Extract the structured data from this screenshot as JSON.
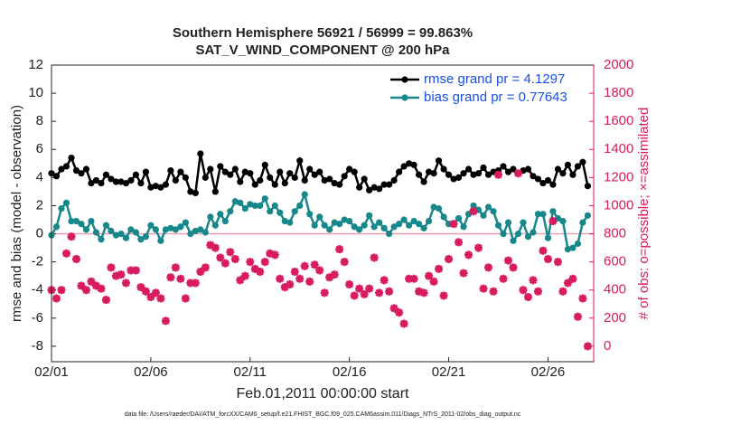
{
  "chart_data": {
    "type": "line",
    "title": "Southern Hemisphere 56921 / 56999 = 99.863%",
    "subtitle": "SAT_V_WIND_COMPONENT @ 200 hPa",
    "xlabel": "Feb.01,2011 00:00:00 start",
    "ylabel": "rmse and bias (model - observation)",
    "y2label": "# of obs: o=possible; ×=assimilated",
    "footnote": "data file: /Users/raeder/DAI/ATM_forcXX/CAM6_setup/f.e21.FHIST_BGC.f09_025.CAM6assim.011/Diags_NTrS_2011-02/obs_diag_output.nc",
    "legend": "northeast",
    "xlim": [
      0,
      27.3
    ],
    "xticks": [
      {
        "value": 0,
        "label": "02/01"
      },
      {
        "value": 5,
        "label": "02/06"
      },
      {
        "value": 10,
        "label": "02/11"
      },
      {
        "value": 15,
        "label": "02/16"
      },
      {
        "value": 20,
        "label": "02/21"
      },
      {
        "value": 25,
        "label": "02/26"
      }
    ],
    "ylim": [
      -9.1,
      12
    ],
    "yticks": [
      -8,
      -6,
      -4,
      -2,
      0,
      2,
      4,
      6,
      8,
      10,
      12
    ],
    "y2lim": [
      -110,
      2000
    ],
    "y2ticks": [
      0,
      200,
      400,
      600,
      800,
      1000,
      1200,
      1400,
      1600,
      1800,
      2000
    ],
    "x": [
      0,
      0.25,
      0.5,
      0.75,
      1,
      1.25,
      1.5,
      1.75,
      2,
      2.25,
      2.5,
      2.75,
      3,
      3.25,
      3.5,
      3.75,
      4,
      4.25,
      4.5,
      4.75,
      5,
      5.25,
      5.5,
      5.75,
      6,
      6.25,
      6.5,
      6.75,
      7,
      7.25,
      7.5,
      7.75,
      8,
      8.25,
      8.5,
      8.75,
      9,
      9.25,
      9.5,
      9.75,
      10,
      10.25,
      10.5,
      10.75,
      11,
      11.25,
      11.5,
      11.75,
      12,
      12.25,
      12.5,
      12.75,
      13,
      13.25,
      13.5,
      13.75,
      14,
      14.25,
      14.5,
      14.75,
      15,
      15.25,
      15.5,
      15.75,
      16,
      16.25,
      16.5,
      16.75,
      17,
      17.25,
      17.5,
      17.75,
      18,
      18.25,
      18.5,
      18.75,
      19,
      19.25,
      19.5,
      19.75,
      20,
      20.25,
      20.5,
      20.75,
      21,
      21.25,
      21.5,
      21.75,
      22,
      22.25,
      22.5,
      22.75,
      23,
      23.25,
      23.5,
      23.75,
      24,
      24.25,
      24.5,
      24.75,
      25,
      25.25,
      25.5,
      25.75,
      26,
      26.25,
      26.5,
      26.75,
      27
    ],
    "series": [
      {
        "name": "rmse grand pr = 4.1297",
        "color": "#000000",
        "values": [
          4.3,
          4.1,
          4.6,
          4.8,
          5.4,
          4.5,
          4.3,
          4.6,
          3.6,
          3.8,
          3.6,
          4.2,
          3.9,
          3.7,
          3.7,
          3.6,
          3.8,
          4.2,
          3.6,
          4.4,
          3.3,
          3.4,
          3.3,
          3.5,
          4.5,
          3.8,
          4.4,
          4.0,
          3.0,
          2.9,
          5.7,
          4.0,
          4.6,
          3.0,
          4.8,
          4.4,
          4.2,
          4.6,
          3.7,
          4.4,
          4.3,
          3.5,
          3.8,
          4.9,
          4.0,
          3.5,
          4.4,
          3.6,
          4.3,
          4.0,
          5.2,
          3.8,
          4.6,
          4.2,
          4.4,
          3.8,
          3.9,
          3.6,
          3.5,
          4.1,
          4.6,
          4.4,
          3.3,
          3.9,
          3.1,
          3.3,
          3.2,
          3.5,
          3.5,
          3.8,
          4.4,
          4.8,
          5.0,
          4.9,
          4.2,
          3.7,
          4.4,
          4.3,
          5.2,
          4.6,
          4.2,
          3.9,
          4.0,
          4.3,
          4.6,
          4.2,
          4.3,
          4.7,
          4.2,
          4.4,
          4.5,
          4.8,
          4.4,
          4.6,
          4.3,
          4.5,
          4.6,
          4.1,
          3.9,
          3.6,
          3.8,
          3.5,
          4.6,
          4.3,
          4.9,
          4.2,
          4.8,
          5.1,
          3.4
        ]
      },
      {
        "name": "bias grand pr = 0.77643",
        "color": "#16878a",
        "values": [
          -0.1,
          0.5,
          1.8,
          2.2,
          0.9,
          0.9,
          0.7,
          0.3,
          0.9,
          0.1,
          -0.4,
          0.6,
          0.2,
          -0.1,
          0.0,
          -0.3,
          0.3,
          0.1,
          -0.4,
          -0.2,
          0.6,
          0.3,
          -0.5,
          0.3,
          0.4,
          0.3,
          0.5,
          0.8,
          0.0,
          0.2,
          0.3,
          0.1,
          1.2,
          0.6,
          1.4,
          0.9,
          1.6,
          2.3,
          2.2,
          1.8,
          2.1,
          2.0,
          2.0,
          2.5,
          1.6,
          2.0,
          1.5,
          0.9,
          0.8,
          1.6,
          2.0,
          2.8,
          1.4,
          0.6,
          1.2,
          0.6,
          0.3,
          0.8,
          0.7,
          1.0,
          0.9,
          0.5,
          0.3,
          0.6,
          1.3,
          0.5,
          0.8,
          0.4,
          0.0,
          0.5,
          0.7,
          1.0,
          0.6,
          0.9,
          0.7,
          0.4,
          0.9,
          1.9,
          1.8,
          1.2,
          0.7,
          0.7,
          1.1,
          0.5,
          1.4,
          2.0,
          1.7,
          1.3,
          1.9,
          1.6,
          0.6,
          0.0,
          0.8,
          -0.5,
          0.0,
          0.8,
          -0.2,
          0.1,
          1.4,
          1.4,
          -0.3,
          1.6,
          1.1,
          0.9,
          -1.1,
          -1.0,
          -0.7,
          0.8,
          1.3
        ]
      },
      {
        "type": "scatter",
        "axis": "y2",
        "color": "#d81b60",
        "values": [
          400,
          340,
          400,
          660,
          780,
          620,
          430,
          400,
          460,
          430,
          410,
          330,
          560,
          500,
          510,
          450,
          540,
          540,
          420,
          390,
          350,
          380,
          340,
          180,
          490,
          560,
          480,
          340,
          450,
          450,
          530,
          560,
          720,
          700,
          630,
          590,
          670,
          620,
          470,
          500,
          600,
          550,
          530,
          600,
          660,
          650,
          480,
          420,
          440,
          530,
          480,
          570,
          460,
          580,
          540,
          380,
          490,
          510,
          690,
          600,
          440,
          360,
          410,
          370,
          410,
          630,
          380,
          470,
          390,
          270,
          240,
          160,
          480,
          480,
          390,
          380,
          500,
          460,
          550,
          360,
          620,
          870,
          740,
          520,
          650,
          960,
          700,
          410,
          560,
          390,
          1220,
          480,
          610,
          560,
          1230,
          400,
          350,
          470,
          390,
          680,
          620,
          890,
          600,
          390,
          450,
          480,
          210,
          340,
          0
        ]
      }
    ]
  }
}
